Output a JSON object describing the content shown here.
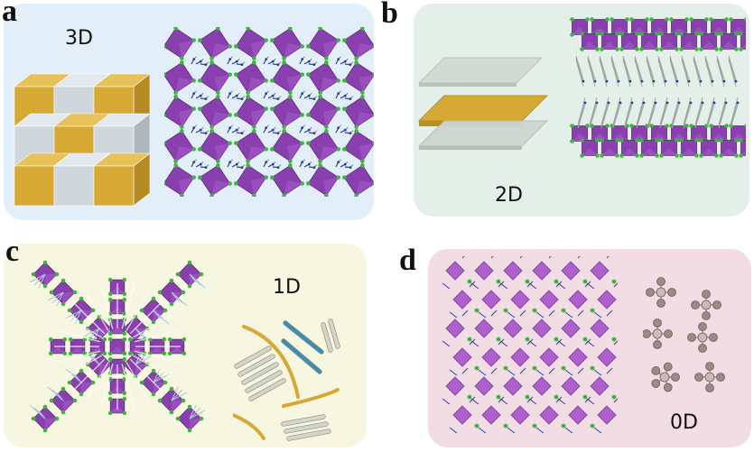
{
  "panels": {
    "a": {
      "letter": "a",
      "label": "3D"
    },
    "b": {
      "letter": "b",
      "label": "2D"
    },
    "c": {
      "letter": "c",
      "label": "1D"
    },
    "d": {
      "letter": "d",
      "label": "0D"
    }
  },
  "colors": {
    "panel_a_bg": "#e2eef8",
    "panel_b_bg": "#e3efe8",
    "panel_c_bg": "#f6f6e1",
    "panel_d_bg": "#f1dde3",
    "octahedron": "#8a3fae",
    "octahedron_light": "#a45ac6",
    "halide_atom": "#3fb33f",
    "organic_cation": "#2c3d9c",
    "gold_block": "#d6a935",
    "grey_block": "#cfd6dc",
    "blue_rod": "#3c8db5",
    "grey_rod": "#d4d6c9"
  }
}
